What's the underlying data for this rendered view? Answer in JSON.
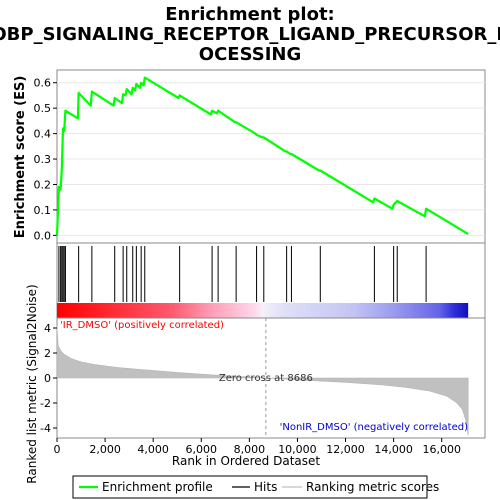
{
  "chart_data": {
    "type": "line",
    "title_lines": [
      "Enrichment plot:",
      "GOBP_SIGNALING_RECEPTOR_LIGAND_PRECURSOR_PR",
      "OCESSING"
    ],
    "es_panel": {
      "ylabel": "Enrichment score (ES)",
      "ylim": [
        -0.03,
        0.65
      ],
      "yticks": [
        "0.0",
        "0.1",
        "0.2",
        "0.3",
        "0.4",
        "0.5",
        "0.6"
      ],
      "ytick_values": [
        0.0,
        0.1,
        0.2,
        0.3,
        0.4,
        0.5,
        0.6
      ],
      "series_color": "#00ff00",
      "x": [
        0,
        80,
        150,
        200,
        250,
        300,
        350,
        870,
        900,
        1400,
        1450,
        2350,
        2400,
        2700,
        2750,
        2850,
        2900,
        3100,
        3150,
        3250,
        3300,
        3450,
        3500,
        3600,
        3650,
        5050,
        5100,
        6400,
        6450,
        6650,
        6700,
        7400,
        7450,
        8250,
        8300,
        8550,
        8600,
        9500,
        9550,
        9700,
        9750,
        10900,
        10950,
        13150,
        13200,
        13950,
        14000,
        14100,
        14150,
        15300,
        15350,
        17100
      ],
      "y": [
        0.0,
        0.19,
        0.18,
        0.26,
        0.42,
        0.41,
        0.49,
        0.46,
        0.56,
        0.51,
        0.565,
        0.51,
        0.54,
        0.52,
        0.555,
        0.55,
        0.575,
        0.555,
        0.58,
        0.57,
        0.595,
        0.58,
        0.6,
        0.59,
        0.62,
        0.54,
        0.55,
        0.475,
        0.49,
        0.48,
        0.49,
        0.445,
        0.445,
        0.4,
        0.395,
        0.385,
        0.385,
        0.33,
        0.33,
        0.32,
        0.32,
        0.255,
        0.255,
        0.13,
        0.145,
        0.105,
        0.12,
        0.13,
        0.135,
        0.075,
        0.105,
        0.005
      ]
    },
    "hits_panel": {
      "hit_positions": [
        80,
        150,
        200,
        250,
        300,
        350,
        900,
        1450,
        2400,
        2750,
        2900,
        3150,
        3300,
        3500,
        3650,
        5100,
        6450,
        6700,
        7450,
        8300,
        8600,
        9550,
        9750,
        10950,
        13200,
        14000,
        14150,
        15350
      ]
    },
    "metric_panel": {
      "ylabel": "Ranked list metric (Signal2Noise)",
      "ylim": [
        -4.8,
        4.8
      ],
      "yticks": [
        "4",
        "2",
        "0",
        "-2",
        "-4"
      ],
      "ytick_values": [
        4,
        2,
        0,
        -2,
        -4
      ],
      "positive_label": "'IR_DMSO' (positively correlated)",
      "negative_label": "'NonIR_DMSO' (negatively correlated)",
      "zero_cross_label": "Zero cross at 8686",
      "zero_cross": 8686,
      "profile_x": [
        0,
        50,
        150,
        300,
        600,
        1000,
        1500,
        2500,
        3500,
        5000,
        6500,
        8000,
        8686,
        10000,
        12000,
        13500,
        14500,
        15500,
        16200,
        16600,
        16850,
        17000,
        17100
      ],
      "profile_y": [
        4.2,
        2.6,
        2.2,
        1.9,
        1.55,
        1.3,
        1.1,
        0.85,
        0.68,
        0.45,
        0.25,
        0.08,
        0.0,
        -0.15,
        -0.35,
        -0.55,
        -0.75,
        -1.05,
        -1.45,
        -1.95,
        -2.5,
        -3.4,
        -4.6
      ]
    },
    "xaxis": {
      "xlabel": "Rank in Ordered Dataset",
      "xlim": [
        0,
        17800
      ],
      "xticks": [
        "0",
        "2,000",
        "4,000",
        "6,000",
        "8,000",
        "10,000",
        "12,000",
        "14,000",
        "16,000"
      ],
      "xtick_values": [
        0,
        2000,
        4000,
        6000,
        8000,
        10000,
        12000,
        14000,
        16000
      ],
      "n_genes": 17100
    },
    "legend": {
      "items": [
        {
          "label": "Enrichment profile",
          "color": "#00ff00"
        },
        {
          "label": "Hits",
          "color": "#000000"
        },
        {
          "label": "Ranking metric scores",
          "color": "#c0c0c0"
        }
      ]
    }
  }
}
